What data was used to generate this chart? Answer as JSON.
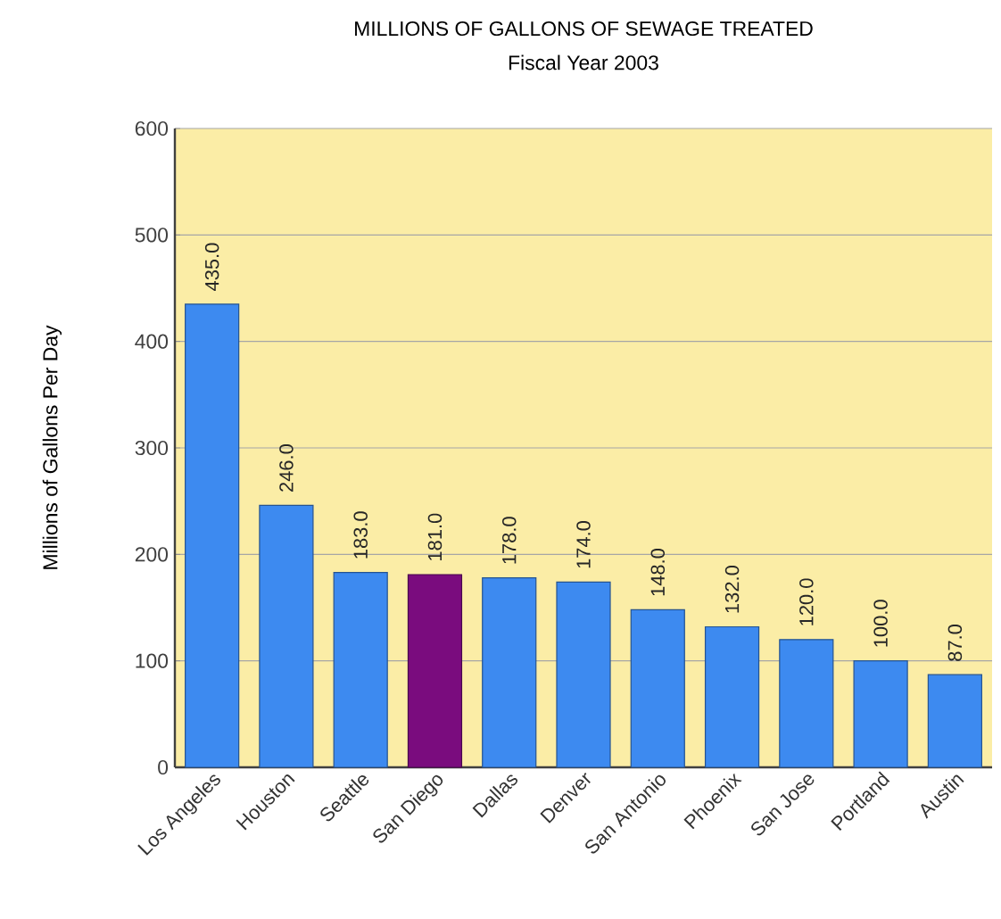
{
  "chart_data": {
    "type": "bar",
    "title": "MILLIONS OF GALLONS OF SEWAGE TREATED",
    "subtitle": "Fiscal Year 2003",
    "ylabel": "Millions of Gallons Per Day",
    "categories": [
      "Los Angeles",
      "Houston",
      "Seattle",
      "San Diego",
      "Dallas",
      "Denver",
      "San Antonio",
      "Phoenix",
      "San Jose",
      "Portland",
      "Austin"
    ],
    "values": [
      435,
      246,
      183,
      181,
      178,
      174,
      148,
      132,
      120,
      100,
      87
    ],
    "value_labels": [
      "435.0",
      "246.0",
      "183.0",
      "181.0",
      "178.0",
      "174.0",
      "148.0",
      "132.0",
      "120.0",
      "100.0",
      "87.0"
    ],
    "colors": [
      "#3d8af0",
      "#3d8af0",
      "#3d8af0",
      "#7a0c7e",
      "#3d8af0",
      "#3d8af0",
      "#3d8af0",
      "#3d8af0",
      "#3d8af0",
      "#3d8af0",
      "#3d8af0"
    ],
    "ylim": [
      0,
      600
    ],
    "yticks": [
      0,
      100,
      200,
      300,
      400,
      500,
      600
    ],
    "grid": "y"
  }
}
